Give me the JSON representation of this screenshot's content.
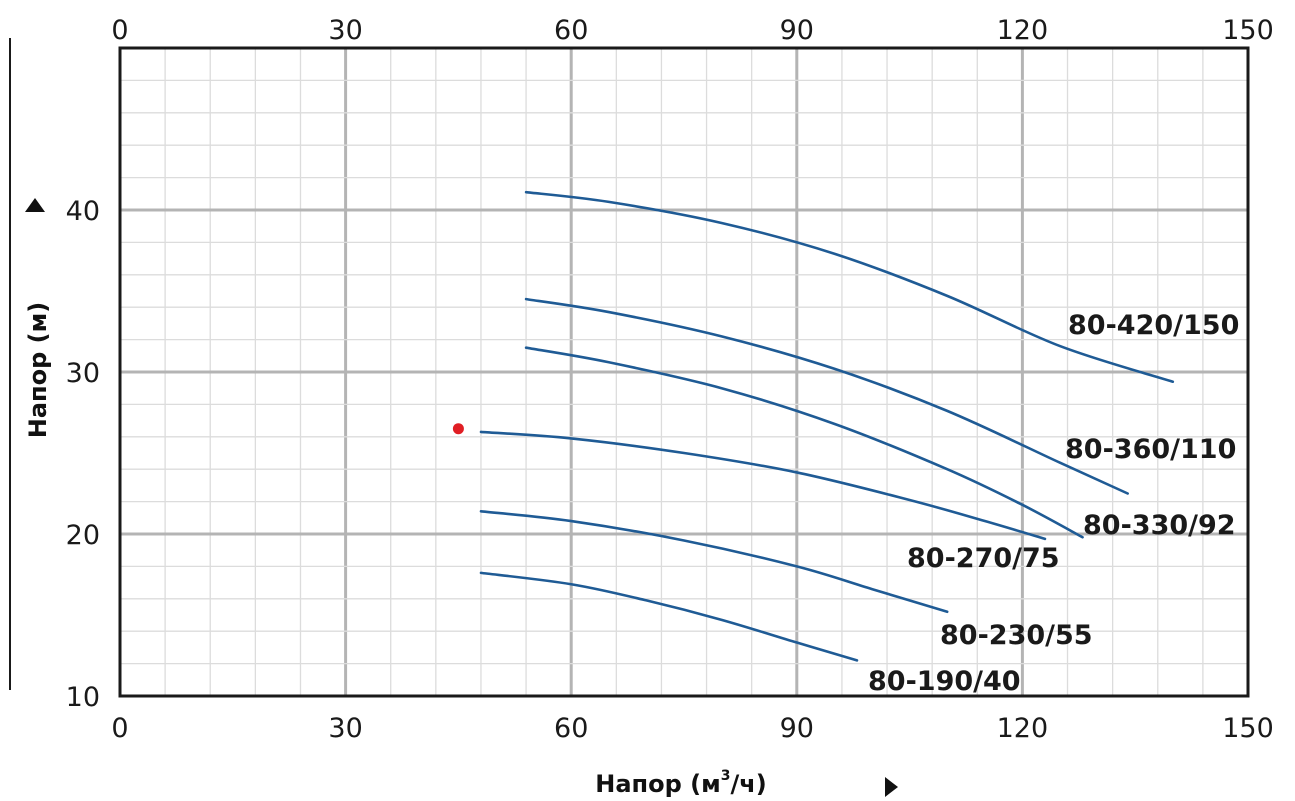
{
  "chart_data": {
    "type": "line",
    "xlabel": "Напор (м³/ч)",
    "xlabel_parts": {
      "base": "Напор (м",
      "sup": "3",
      "rest": "/ч)"
    },
    "ylabel": "Напор (м)",
    "xlim": [
      0,
      150
    ],
    "ylim": [
      10,
      50
    ],
    "x_ticks": [
      "0",
      "30",
      "60",
      "90",
      "120",
      "150"
    ],
    "y_ticks": [
      "10",
      "20",
      "30",
      "40"
    ],
    "grid": true,
    "colors": {
      "series": "#1f5b95",
      "marker": "#e01e24",
      "grid_major": "#b4b4b4",
      "grid_minor": "#dcdcdc",
      "frame": "#1a1a1a"
    },
    "series": [
      {
        "name": "80-420/150",
        "x": [
          54,
          65,
          80,
          95,
          110,
          125,
          140
        ],
        "y": [
          41.1,
          40.5,
          39.2,
          37.3,
          34.7,
          31.6,
          29.4
        ]
      },
      {
        "name": "80-360/110",
        "x": [
          54,
          65,
          80,
          95,
          110,
          125,
          134
        ],
        "y": [
          34.5,
          33.7,
          32.2,
          30.2,
          27.6,
          24.4,
          22.5
        ]
      },
      {
        "name": "80-330/92",
        "x": [
          54,
          65,
          80,
          95,
          110,
          120,
          128
        ],
        "y": [
          31.5,
          30.6,
          29.0,
          26.8,
          24.0,
          21.8,
          19.8
        ]
      },
      {
        "name": "80-270/75",
        "x": [
          48,
          60,
          75,
          90,
          105,
          115,
          123
        ],
        "y": [
          26.3,
          25.9,
          25.0,
          23.8,
          22.1,
          20.8,
          19.7
        ]
      },
      {
        "name": "80-230/55",
        "x": [
          48,
          60,
          75,
          90,
          100,
          110
        ],
        "y": [
          21.4,
          20.8,
          19.6,
          18.0,
          16.6,
          15.2
        ]
      },
      {
        "name": "80-190/40",
        "x": [
          48,
          60,
          70,
          80,
          90,
          98
        ],
        "y": [
          17.6,
          16.9,
          15.9,
          14.7,
          13.3,
          12.2
        ]
      }
    ],
    "points": [
      {
        "x": 45,
        "y": 26.5
      }
    ]
  }
}
